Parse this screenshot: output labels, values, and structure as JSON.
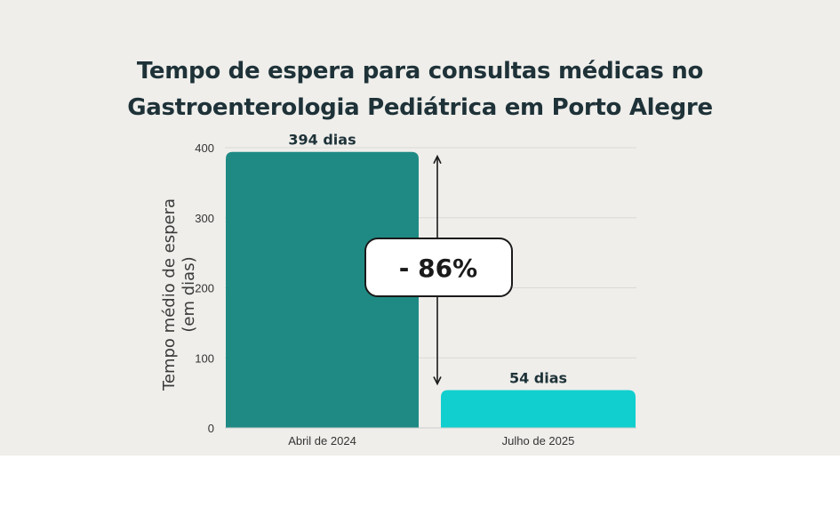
{
  "chart_data": {
    "type": "bar",
    "title": [
      "Tempo de espera para consultas médicas no",
      "Gastroenterologia Pediátrica em Porto Alegre"
    ],
    "ylabel": [
      "Tempo médio de espera",
      "(em dias)"
    ],
    "xlabel": "",
    "categories": [
      "Abril de 2024",
      "Julho de 2025"
    ],
    "values": [
      394,
      54
    ],
    "data_labels": [
      "394 dias",
      "54 dias"
    ],
    "colors": [
      "#1f8a84",
      "#12cfcf"
    ],
    "ylim": [
      0,
      400
    ],
    "yticks": [
      0,
      100,
      200,
      300,
      400
    ],
    "grid": true,
    "annotation": {
      "text": "- 86%",
      "type": "double-arrow",
      "from_value": 394,
      "to_value": 54
    }
  }
}
